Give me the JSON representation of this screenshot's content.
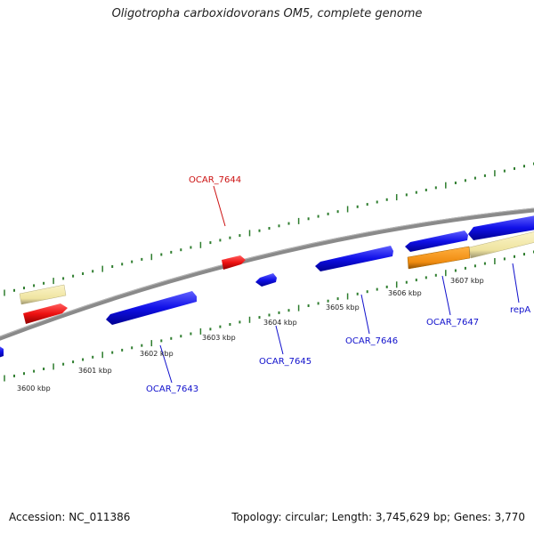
{
  "title": "Oligotropha carboxidovorans OM5, complete genome",
  "footer": {
    "accession": "Accession: NC_011386",
    "summary": "Topology: circular; Length: 3,745,629 bp; Genes: 3,770"
  },
  "scale_labels": [
    "3600 kbp",
    "3601 kbp",
    "3602 kbp",
    "3603 kbp",
    "3604 kbp",
    "3605 kbp",
    "3606 kbp",
    "3607 kbp"
  ],
  "genes": [
    {
      "name": "OCAR_7643",
      "color": "#1010e8"
    },
    {
      "name": "OCAR_7644",
      "color": "#dd1111"
    },
    {
      "name": "OCAR_7645",
      "color": "#1010e8"
    },
    {
      "name": "OCAR_7646",
      "color": "#1010e8"
    },
    {
      "name": "OCAR_7647",
      "color": "#1010e8"
    },
    {
      "name": "repA",
      "color": "#1010e8"
    }
  ],
  "colors": {
    "backbone": "#8a8a8a",
    "ticks": "#2e7d2e",
    "cds_forward": "#1010e8",
    "cds_highlight": "#ee1111",
    "pseudo": "#f0e6a8",
    "orange_feature": "#f08c10",
    "label_blue": "#1010cc",
    "label_red": "#cc1111"
  }
}
